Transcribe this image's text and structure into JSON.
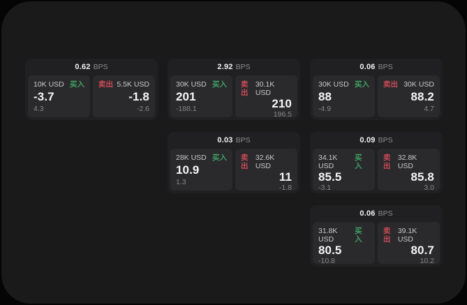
{
  "labels": {
    "bps_unit": "BPS",
    "buy": "买入",
    "sell": "卖出"
  },
  "colors": {
    "page_background": "#050505",
    "window_background": "#1a1a1b",
    "card_background": "#202022",
    "tile_background": "#2a2a2c",
    "buy_green": "#3fa063",
    "sell_red": "#c94a57",
    "primary_text": "#f5f5f6",
    "muted_text": "#8d8d90"
  },
  "cards": [
    {
      "bps": "0.62",
      "buy": {
        "amount": "10K USD",
        "price": "-3.7",
        "change": "4.3"
      },
      "sell": {
        "amount": "5.5K USD",
        "price": "-1.8",
        "change": "-2.6"
      }
    },
    {
      "bps": "2.92",
      "buy": {
        "amount": "30K USD",
        "price": "201",
        "change": "-188.1"
      },
      "sell": {
        "amount": "30.1K USD",
        "price": "210",
        "change": "196.5"
      }
    },
    {
      "bps": "0.06",
      "buy": {
        "amount": "30K USD",
        "price": "88",
        "change": "-4.9"
      },
      "sell": {
        "amount": "30K USD",
        "price": "88.2",
        "change": "4.7"
      }
    },
    {
      "bps": "0.03",
      "buy": {
        "amount": "28K USD",
        "price": "10.9",
        "change": "1.3"
      },
      "sell": {
        "amount": "32.6K USD",
        "price": "11",
        "change": "-1.8"
      }
    },
    {
      "bps": "0.09",
      "buy": {
        "amount": "34.1K USD",
        "price": "85.5",
        "change": "-3.1"
      },
      "sell": {
        "amount": "32.8K USD",
        "price": "85.8",
        "change": "3.0"
      }
    },
    {
      "bps": "0.06",
      "buy": {
        "amount": "31.8K USD",
        "price": "80.5",
        "change": "-10.8"
      },
      "sell": {
        "amount": "39.1K USD",
        "price": "80.7",
        "change": "10.2"
      }
    }
  ]
}
